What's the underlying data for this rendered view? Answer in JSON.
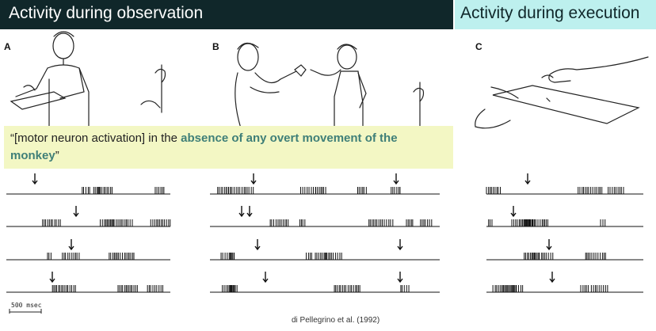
{
  "slide": {
    "left_title": "Activity during observation",
    "right_title": "Activity during execution",
    "quote_open": "“",
    "quote_before": "[motor neuron activation] in the ",
    "quote_highlight": "absence of any overt movement of the monkey",
    "quote_close": "”",
    "scale_label": "500 msec",
    "citation": "di Pellegrino et al. (1992)"
  },
  "panels": [
    {
      "letter": "A",
      "description": "experimenter grasping object from tray; monkey watching"
    },
    {
      "letter": "B",
      "description": "experimenter passing object to second experimenter; monkey watching"
    },
    {
      "letter": "C",
      "description": "monkey grasping object from tray"
    }
  ],
  "colors": {
    "banner_dark": "#10272a",
    "banner_light": "#bdf0ee",
    "quote_bg": "#f3f7c4",
    "highlight_text": "#3f7f78"
  },
  "raster_groups": [
    {
      "panel": "A",
      "trials": 4
    },
    {
      "panel": "B",
      "trials": 4
    },
    {
      "panel": "C",
      "trials": 4
    }
  ]
}
